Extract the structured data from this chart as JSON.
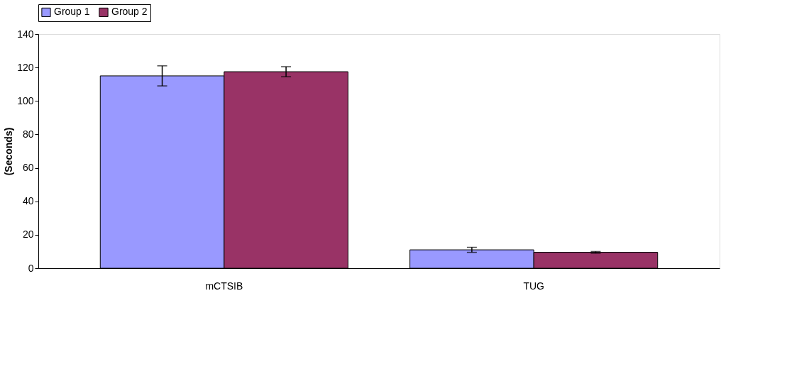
{
  "chart_data": {
    "type": "bar",
    "ylabel": "(Seconds)",
    "categories": [
      "mCTSIB",
      "TUG"
    ],
    "series": [
      {
        "name": "Group 1",
        "color": "#9999ff",
        "values": [
          115,
          11
        ],
        "errors": [
          6,
          1.5
        ]
      },
      {
        "name": "Group 2",
        "color": "#993366",
        "values": [
          117.5,
          9.5
        ],
        "errors": [
          3,
          0.5
        ]
      }
    ],
    "ylim": [
      0,
      140
    ],
    "yticks": [
      0,
      20,
      40,
      60,
      80,
      100,
      120,
      140
    ],
    "grid": false,
    "legend": "top"
  }
}
